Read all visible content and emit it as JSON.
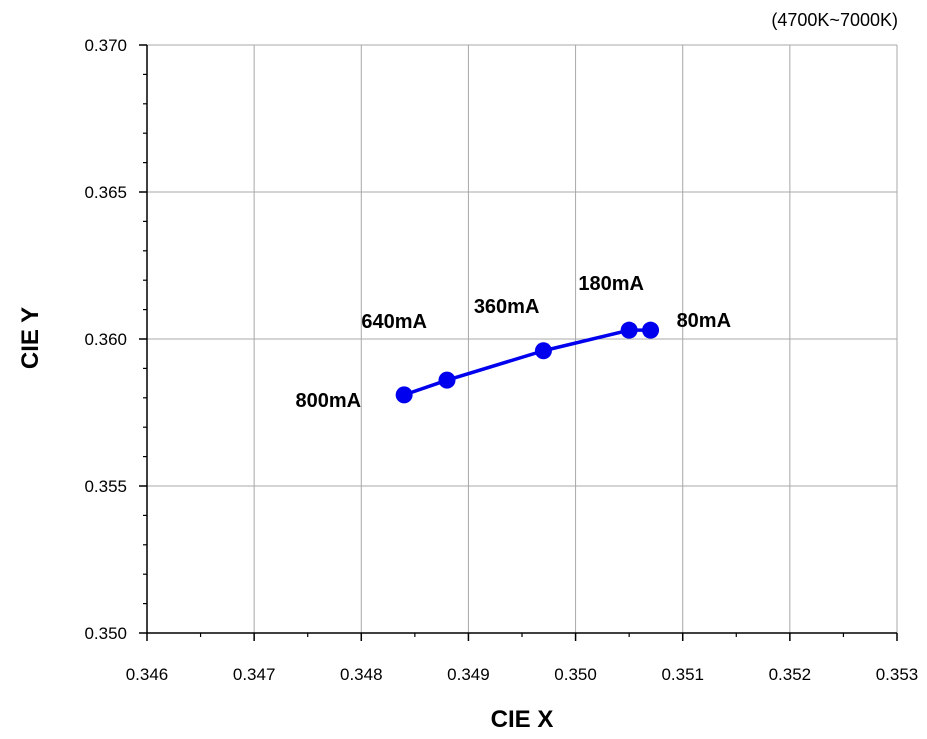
{
  "chart_data": {
    "type": "scatter",
    "note": "(4700K~7000K)",
    "xlabel": "CIE X",
    "ylabel": "CIE Y",
    "xlim": [
      0.346,
      0.353
    ],
    "ylim": [
      0.35,
      0.37
    ],
    "x_ticks": [
      "0.346",
      "0.347",
      "0.348",
      "0.349",
      "0.350",
      "0.351",
      "0.352",
      "0.353"
    ],
    "y_ticks": [
      "0.350",
      "0.355",
      "0.360",
      "0.365",
      "0.370"
    ],
    "grid": true,
    "series": [
      {
        "color": "#0000ee",
        "points": [
          {
            "x": 0.3484,
            "y": 0.3581,
            "label": "800mA"
          },
          {
            "x": 0.3488,
            "y": 0.3586,
            "label": "640mA"
          },
          {
            "x": 0.3497,
            "y": 0.3596,
            "label": "360mA"
          },
          {
            "x": 0.3505,
            "y": 0.3603,
            "label": "180mA"
          },
          {
            "x": 0.3507,
            "y": 0.3603,
            "label": "80mA"
          }
        ]
      }
    ]
  }
}
